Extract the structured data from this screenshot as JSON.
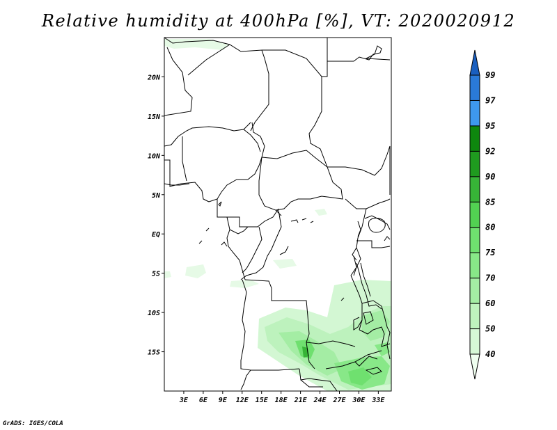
{
  "title": "Relative humidity at 400hPa [%], VT: 2020020912",
  "credit": "GrADS: IGES/COLA",
  "map": {
    "lon_range": [
      0,
      35
    ],
    "lat_range": [
      -20,
      25
    ],
    "x_ticks": [
      "3E",
      "6E",
      "9E",
      "12E",
      "15E",
      "18E",
      "21E",
      "24E",
      "27E",
      "30E",
      "33E"
    ],
    "y_ticks": [
      "20N",
      "15N",
      "10N",
      "5N",
      "EQ",
      "5S",
      "10S",
      "15S"
    ]
  },
  "colorbar": {
    "levels": [
      "40",
      "50",
      "60",
      "70",
      "75",
      "80",
      "85",
      "90",
      "92",
      "95",
      "97",
      "99"
    ],
    "colors": [
      "#f0fff0",
      "#d6f8d6",
      "#bff3be",
      "#a4eda4",
      "#88e888",
      "#6fe06f",
      "#52d152",
      "#37b437",
      "#1f9b1f",
      "#0e870e",
      "#3e98ee",
      "#2a7ad8",
      "#1a5fbf"
    ]
  }
}
